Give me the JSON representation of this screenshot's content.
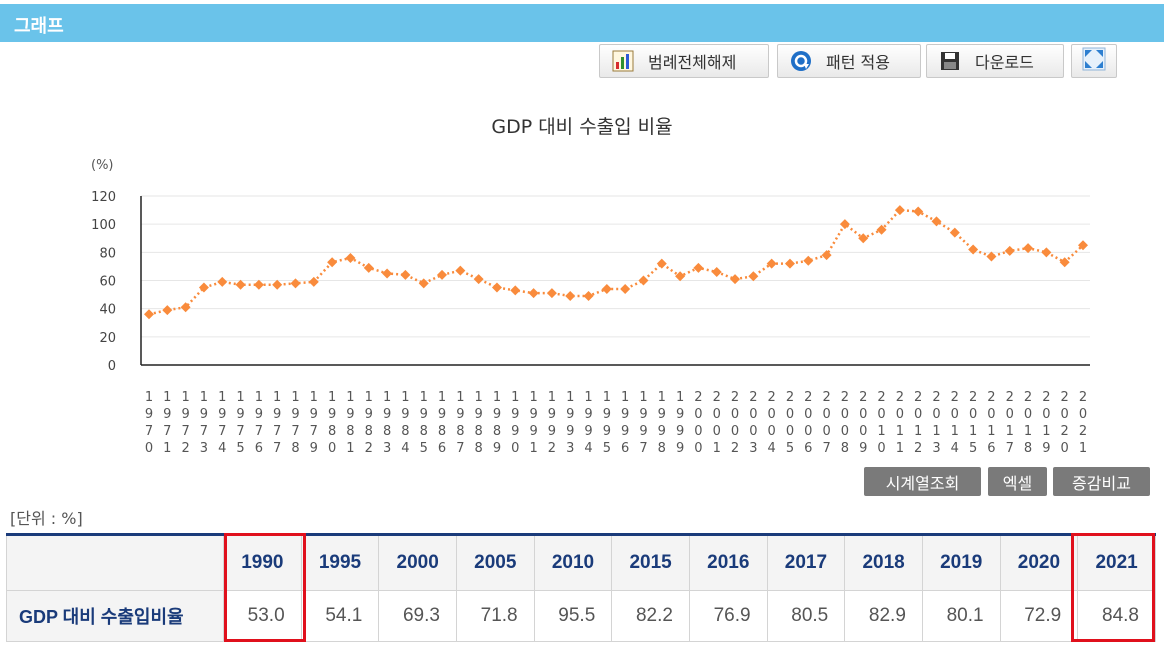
{
  "header": {
    "title": "그래프"
  },
  "toolbar": {
    "legend_toggle_label": "범례전체해제",
    "pattern_label": "패턴 적용",
    "download_label": "다운로드"
  },
  "buttons": {
    "timeseries_label": "시계열조회",
    "excel_label": "엑셀",
    "compare_label": "증감비교"
  },
  "unit_label": "[단위 : %]",
  "table": {
    "row_label": "GDP 대비 수출입비율",
    "years": [
      "1990",
      "1995",
      "2000",
      "2005",
      "2010",
      "2015",
      "2016",
      "2017",
      "2018",
      "2019",
      "2020",
      "2021"
    ],
    "values": [
      "53.0",
      "54.1",
      "69.3",
      "71.8",
      "95.5",
      "82.2",
      "76.9",
      "80.5",
      "82.9",
      "80.1",
      "72.9",
      "84.8"
    ],
    "highlighted_years": [
      "1990",
      "2021"
    ]
  },
  "colors": {
    "series": "#f98b3c",
    "header": "#6ac3ea",
    "highlight": "#e0101c",
    "table_header_text": "#1a3b7a"
  },
  "chart_data": {
    "type": "line",
    "title": "GDP 대비 수출입 비율",
    "ylabel": "(%)",
    "ylim": [
      0,
      120
    ],
    "yticks": [
      0,
      20,
      40,
      60,
      80,
      100,
      120
    ],
    "x": [
      1970,
      1971,
      1972,
      1973,
      1974,
      1975,
      1976,
      1977,
      1978,
      1979,
      1980,
      1981,
      1982,
      1983,
      1984,
      1985,
      1986,
      1987,
      1988,
      1989,
      1990,
      1991,
      1992,
      1993,
      1994,
      1995,
      1996,
      1997,
      1998,
      1999,
      2000,
      2001,
      2002,
      2003,
      2004,
      2005,
      2006,
      2007,
      2008,
      2009,
      2010,
      2011,
      2012,
      2013,
      2014,
      2015,
      2016,
      2017,
      2018,
      2019,
      2020,
      2021
    ],
    "series": [
      {
        "values": [
          36,
          39,
          41,
          55,
          59,
          57,
          57,
          57,
          58,
          59,
          73,
          76,
          69,
          65,
          64,
          58,
          64,
          67,
          61,
          55,
          53,
          51,
          51,
          49,
          49,
          54,
          54,
          60,
          72,
          63,
          69,
          66,
          61,
          63,
          72,
          72,
          74,
          78,
          100,
          90,
          96,
          110,
          109,
          102,
          94,
          82,
          77,
          81,
          83,
          80,
          73,
          85
        ]
      }
    ],
    "grid": true,
    "legend": "none"
  }
}
